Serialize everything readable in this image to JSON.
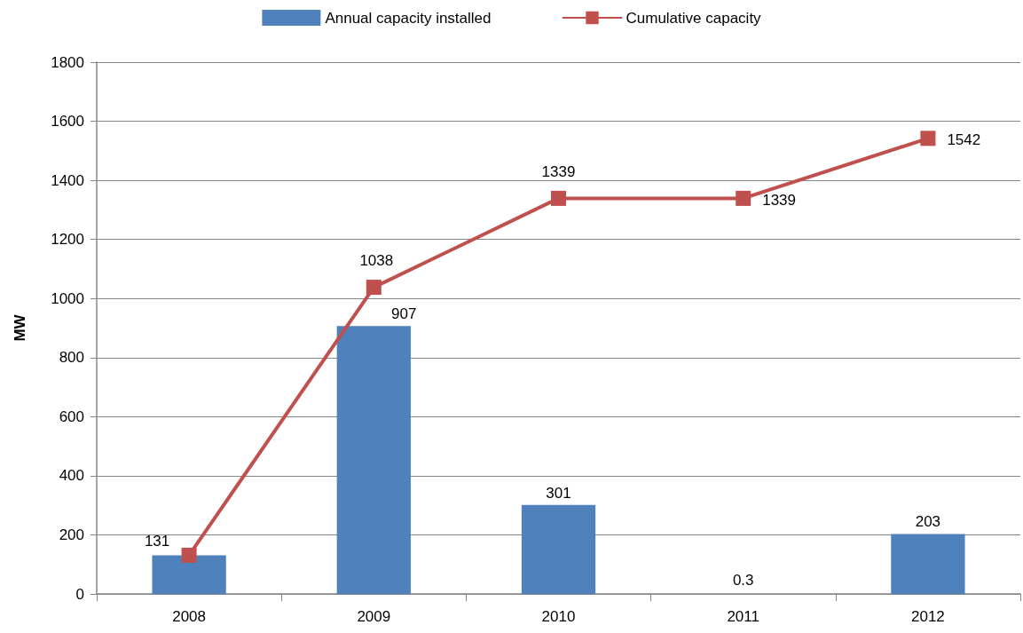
{
  "chart_data": {
    "type": "bar",
    "categories": [
      "2008",
      "2009",
      "2010",
      "2011",
      "2012"
    ],
    "ylabel": "MW",
    "ylim": [
      0,
      1800
    ],
    "yticks": [
      0,
      200,
      400,
      600,
      800,
      1000,
      1200,
      1400,
      1600,
      1800
    ],
    "grid": "y",
    "legend": "top",
    "marker": "square",
    "line_style": "solid",
    "series": [
      {
        "name": "Annual capacity installed",
        "color": "#4f81bd",
        "values": [
          131,
          907,
          301,
          0.3,
          203
        ],
        "value_labels": [
          "131",
          "907",
          "301",
          "0.3",
          "203"
        ]
      },
      {
        "name": "Cumulative capacity",
        "type": "line",
        "color": "#c0504d",
        "values": [
          131,
          1038,
          1339,
          1339,
          1542
        ],
        "value_labels": [
          null,
          "1038",
          "1339",
          "1339",
          "1542"
        ]
      }
    ]
  }
}
